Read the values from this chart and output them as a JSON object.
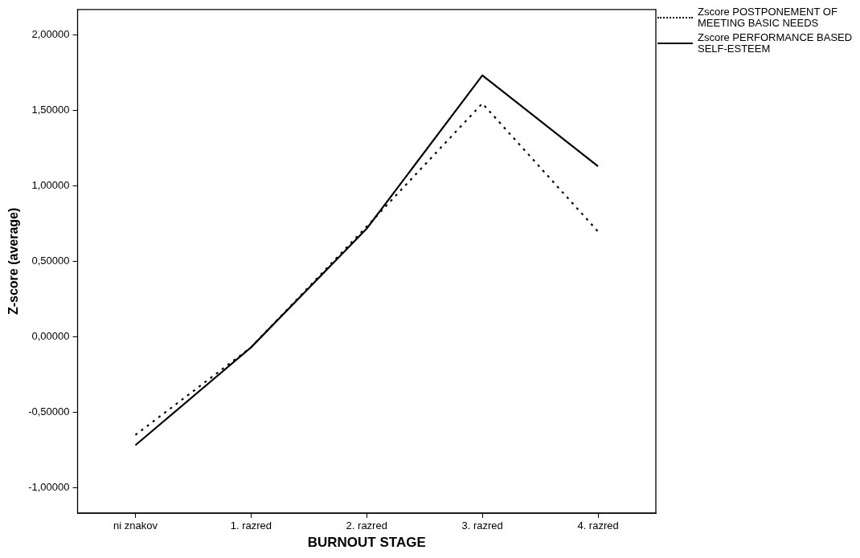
{
  "chart_data": {
    "type": "line",
    "xlabel": "BURNOUT STAGE",
    "ylabel": "Z-score (average)",
    "categories": [
      "ni znakov",
      "1. razred",
      "2. razred",
      "3. razred",
      "4. razred"
    ],
    "series": [
      {
        "name": "Zscore POSTPONEMENT OF MEETING BASIC NEEDS",
        "color": "#000000",
        "line_style": "dotted",
        "values": [
          -0.65,
          -0.07,
          0.73,
          1.545,
          0.697
        ]
      },
      {
        "name": "Zscore PERFORMANCE BASED SELF-ESTEEM",
        "color": "#000000",
        "line_style": "solid",
        "values": [
          -0.718,
          -0.07,
          0.716,
          1.731,
          1.129
        ]
      }
    ],
    "ylim": [
      -1.167,
      2.167
    ],
    "yticks": [
      {
        "value": -1,
        "label": "-1,00000"
      },
      {
        "value": -0.5,
        "label": "-0,50000"
      },
      {
        "value": 0,
        "label": "0,00000"
      },
      {
        "value": 0.5,
        "label": "0,50000"
      },
      {
        "value": 1,
        "label": "1,00000"
      },
      {
        "value": 1.5,
        "label": "1,50000"
      },
      {
        "value": 2,
        "label": "2,00000"
      }
    ],
    "grid": false,
    "legend": "top right",
    "marker": "none"
  }
}
